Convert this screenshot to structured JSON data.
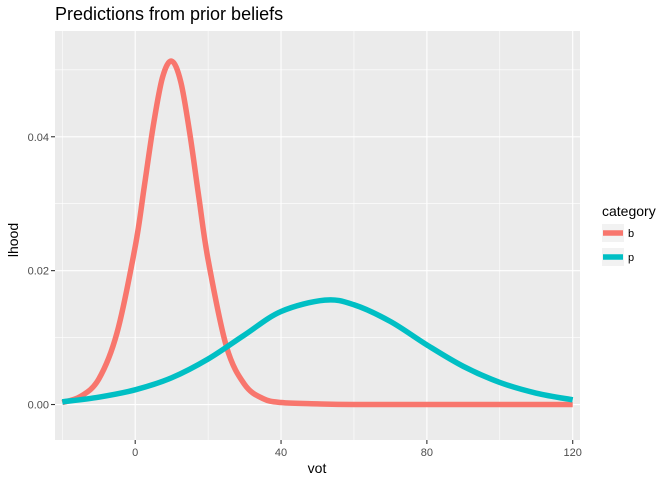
{
  "chart_data": {
    "type": "line",
    "title": "Predictions from prior beliefs",
    "xlabel": "vot",
    "ylabel": "lhood",
    "xlim": [
      -22,
      122
    ],
    "ylim": [
      -0.0053,
      0.0558
    ],
    "x_ticks": [
      0,
      40,
      80,
      120
    ],
    "x_tick_labels": [
      "0",
      "40",
      "80",
      "120"
    ],
    "y_ticks": [
      0.0,
      0.02,
      0.04
    ],
    "y_tick_labels": [
      "0.00",
      "0.02",
      "0.04"
    ],
    "grid": true,
    "legend": {
      "title": "category",
      "position": "right",
      "entries": [
        "b",
        "p"
      ]
    },
    "series": [
      {
        "name": "b",
        "color": "#F8766D",
        "x": [
          -20,
          -15,
          -10,
          -5,
          0,
          2.5,
          5,
          7.5,
          10,
          12.5,
          15,
          17.5,
          20,
          25,
          30,
          35,
          40,
          50,
          60,
          80,
          100,
          120
        ],
        "y": [
          0.0003,
          0.0012,
          0.0038,
          0.0107,
          0.0236,
          0.0326,
          0.0418,
          0.0489,
          0.0513,
          0.0482,
          0.0404,
          0.0308,
          0.0216,
          0.0087,
          0.003,
          0.0009,
          0.0003,
          0.0001,
          0.0,
          0.0,
          0.0,
          0.0
        ]
      },
      {
        "name": "p",
        "color": "#00BFC4",
        "x": [
          -20,
          -10,
          0,
          10,
          20,
          30,
          40,
          52,
          60,
          70,
          80,
          90,
          100,
          110,
          120
        ],
        "y": [
          0.0004,
          0.0011,
          0.0022,
          0.004,
          0.0068,
          0.0104,
          0.0139,
          0.0156,
          0.0149,
          0.0124,
          0.0089,
          0.0057,
          0.0033,
          0.0017,
          0.0007
        ]
      }
    ]
  }
}
